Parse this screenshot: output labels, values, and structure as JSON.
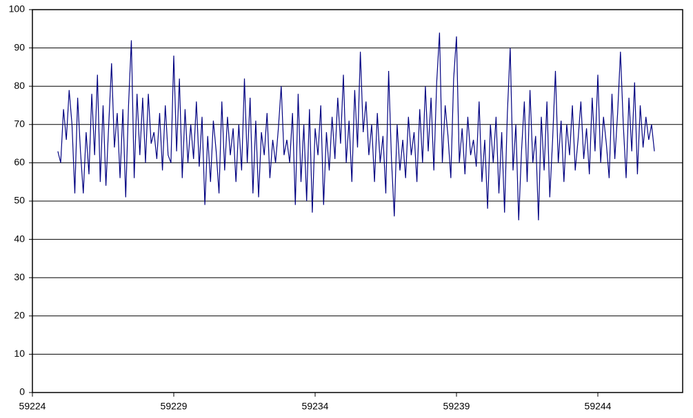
{
  "chart_data": {
    "type": "line",
    "x": [
      59224.9,
      59225,
      59225.1,
      59225.2,
      59225.3,
      59225.4,
      59225.5,
      59225.6,
      59225.7,
      59225.8,
      59225.9,
      59226,
      59226.1,
      59226.2,
      59226.3,
      59226.4,
      59226.5,
      59226.6,
      59226.7,
      59226.8,
      59226.9,
      59227,
      59227.1,
      59227.2,
      59227.3,
      59227.4,
      59227.5,
      59227.6,
      59227.7,
      59227.8,
      59227.9,
      59228,
      59228.1,
      59228.2,
      59228.3,
      59228.4,
      59228.5,
      59228.6,
      59228.7,
      59228.8,
      59228.9,
      59229,
      59229.1,
      59229.2,
      59229.3,
      59229.4,
      59229.5,
      59229.6,
      59229.7,
      59229.8,
      59229.9,
      59230,
      59230.1,
      59230.2,
      59230.3,
      59230.4,
      59230.5,
      59230.6,
      59230.7,
      59230.8,
      59230.9,
      59231,
      59231.1,
      59231.2,
      59231.3,
      59231.4,
      59231.5,
      59231.6,
      59231.7,
      59231.8,
      59231.9,
      59232,
      59232.1,
      59232.2,
      59232.3,
      59232.4,
      59232.5,
      59232.6,
      59232.7,
      59232.8,
      59232.9,
      59233,
      59233.1,
      59233.2,
      59233.3,
      59233.4,
      59233.5,
      59233.6,
      59233.7,
      59233.8,
      59233.9,
      59234,
      59234.1,
      59234.2,
      59234.3,
      59234.4,
      59234.5,
      59234.6,
      59234.7,
      59234.8,
      59234.9,
      59235,
      59235.1,
      59235.2,
      59235.3,
      59235.4,
      59235.5,
      59235.6,
      59235.7,
      59235.8,
      59235.9,
      59236,
      59236.1,
      59236.2,
      59236.3,
      59236.4,
      59236.5,
      59236.6,
      59236.7,
      59236.8,
      59236.9,
      59237,
      59237.1,
      59237.2,
      59237.3,
      59237.4,
      59237.5,
      59237.6,
      59237.7,
      59237.8,
      59237.9,
      59238,
      59238.1,
      59238.2,
      59238.3,
      59238.4,
      59238.5,
      59238.6,
      59238.7,
      59238.8,
      59238.9,
      59239,
      59239.1,
      59239.2,
      59239.3,
      59239.4,
      59239.5,
      59239.6,
      59239.7,
      59239.8,
      59239.9,
      59240,
      59240.1,
      59240.2,
      59240.3,
      59240.4,
      59240.5,
      59240.6,
      59240.7,
      59240.8,
      59240.9,
      59241,
      59241.1,
      59241.2,
      59241.3,
      59241.4,
      59241.5,
      59241.6,
      59241.7,
      59241.8,
      59241.9,
      59242,
      59242.1,
      59242.2,
      59242.3,
      59242.4,
      59242.5,
      59242.6,
      59242.7,
      59242.8,
      59242.9,
      59243,
      59243.1,
      59243.2,
      59243.3,
      59243.4,
      59243.5,
      59243.6,
      59243.7,
      59243.8,
      59243.9,
      59244,
      59244.1,
      59244.2,
      59244.3,
      59244.4,
      59244.5,
      59244.6,
      59244.7,
      59244.8,
      59244.9,
      59245,
      59245.1,
      59245.2,
      59245.3,
      59245.4,
      59245.5,
      59245.6,
      59245.7,
      59245.8,
      59245.9,
      59246
    ],
    "values": [
      63,
      60,
      74,
      66,
      79,
      70,
      52,
      77,
      63,
      52,
      68,
      57,
      78,
      62,
      83,
      55,
      75,
      54,
      70,
      86,
      64,
      73,
      56,
      74,
      51,
      75,
      92,
      56,
      78,
      62,
      77,
      60,
      78,
      65,
      68,
      61,
      73,
      58,
      75,
      62,
      60,
      88,
      63,
      82,
      56,
      74,
      60,
      70,
      61,
      76,
      59,
      72,
      49,
      67,
      55,
      71,
      63,
      52,
      76,
      58,
      72,
      62,
      69,
      55,
      70,
      58,
      82,
      60,
      77,
      52,
      71,
      51,
      68,
      62,
      73,
      56,
      66,
      60,
      69,
      80,
      62,
      66,
      60,
      73,
      49,
      78,
      55,
      70,
      50,
      74,
      47,
      69,
      62,
      75,
      49,
      68,
      58,
      72,
      61,
      77,
      65,
      83,
      60,
      71,
      55,
      79,
      64,
      89,
      68,
      76,
      62,
      70,
      55,
      73,
      60,
      67,
      52,
      84,
      61,
      46,
      70,
      58,
      66,
      56,
      72,
      62,
      68,
      55,
      74,
      60,
      80,
      63,
      77,
      58,
      81,
      94,
      60,
      75,
      67,
      56,
      82,
      93,
      60,
      69,
      57,
      72,
      62,
      66,
      59,
      76,
      55,
      66,
      48,
      70,
      60,
      72,
      52,
      68,
      47,
      73,
      90,
      58,
      70,
      45,
      63,
      76,
      55,
      79,
      60,
      67,
      45,
      72,
      58,
      76,
      51,
      66,
      84,
      60,
      71,
      55,
      70,
      62,
      75,
      58,
      66,
      76,
      61,
      69,
      57,
      77,
      63,
      83,
      60,
      72,
      65,
      56,
      78,
      61,
      73,
      89,
      70,
      56,
      77,
      63,
      81,
      57,
      75,
      64,
      72,
      66,
      70,
      63
    ],
    "color": "#000080",
    "xlim": [
      59224,
      59247
    ],
    "xticks": [
      59224,
      59229,
      59234,
      59239,
      59244
    ],
    "ylim": [
      0,
      100
    ],
    "yticks": [
      0,
      10,
      20,
      30,
      40,
      50,
      60,
      70,
      80,
      90,
      100
    ],
    "grid": true
  }
}
